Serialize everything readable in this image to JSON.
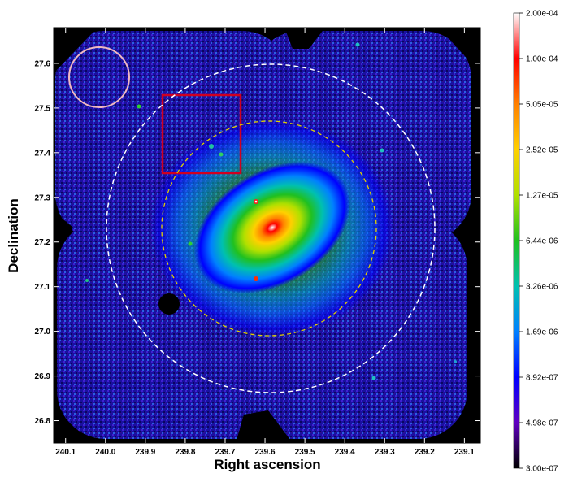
{
  "figure": {
    "xlabel": "Right ascension",
    "ylabel": "Declination",
    "xticks": [
      "240.1",
      "240.0",
      "239.9",
      "239.8",
      "239.7",
      "239.6",
      "239.5",
      "239.4",
      "239.3",
      "239.2",
      "239.1"
    ],
    "xtick_values": [
      240.1,
      240.0,
      239.9,
      239.8,
      239.7,
      239.6,
      239.5,
      239.4,
      239.3,
      239.2,
      239.1
    ],
    "yticks": [
      "27.6",
      "27.5",
      "27.4",
      "27.3",
      "27.2",
      "27.1",
      "27.0",
      "26.9",
      "26.8"
    ],
    "ytick_values": [
      27.6,
      27.5,
      27.4,
      27.3,
      27.2,
      27.1,
      27.0,
      26.9,
      26.8
    ],
    "xlim": [
      240.13,
      239.06
    ],
    "ylim": [
      26.75,
      27.68
    ],
    "colorbar": {
      "labels": [
        "2.00e-04",
        "1.00e-04",
        "5.05e-05",
        "2.52e-05",
        "1.27e-05",
        "6.44e-06",
        "3.26e-06",
        "1.69e-06",
        "8.92e-07",
        "4.98e-07",
        "3.00e-07"
      ],
      "colors": [
        "#ffffff",
        "#ff0000",
        "#ff8000",
        "#ffd000",
        "#b0e000",
        "#20c020",
        "#00c0b0",
        "#0080ff",
        "#0000ff",
        "#6000c0",
        "#000000"
      ],
      "scale": "log"
    },
    "annotations": {
      "background_circle_color": "#f0b8c0",
      "region_box_color": "#d00020",
      "outer_circle_color": "#ffffff",
      "inner_circle_color": "#e0d000"
    }
  }
}
